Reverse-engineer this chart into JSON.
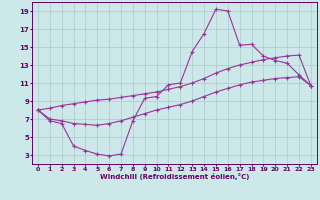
{
  "xlabel": "Windchill (Refroidissement éolien,°C)",
  "ylabel": "",
  "background_color": "#cce8e8",
  "grid_color": "#aacccc",
  "line_color": "#993399",
  "xlim": [
    -0.5,
    23.5
  ],
  "ylim": [
    2,
    20
  ],
  "xticks": [
    0,
    1,
    2,
    3,
    4,
    5,
    6,
    7,
    8,
    9,
    10,
    11,
    12,
    13,
    14,
    15,
    16,
    17,
    18,
    19,
    20,
    21,
    22,
    23
  ],
  "yticks": [
    3,
    5,
    7,
    9,
    11,
    13,
    15,
    17,
    19
  ],
  "hours": [
    0,
    1,
    2,
    3,
    4,
    5,
    6,
    7,
    8,
    9,
    10,
    11,
    12,
    13,
    14,
    15,
    16,
    17,
    18,
    19,
    20,
    21,
    22,
    23
  ],
  "line_main": [
    8.0,
    6.8,
    6.5,
    4.0,
    3.5,
    3.1,
    2.9,
    3.1,
    6.8,
    9.3,
    9.5,
    10.8,
    11.0,
    14.5,
    16.5,
    19.2,
    19.0,
    15.2,
    15.3,
    14.0,
    13.5,
    13.2,
    11.9,
    10.7
  ],
  "line_upper": [
    8.0,
    8.2,
    8.5,
    8.7,
    8.9,
    9.1,
    9.2,
    9.4,
    9.6,
    9.8,
    10.0,
    10.3,
    10.6,
    11.0,
    11.5,
    12.1,
    12.6,
    13.0,
    13.3,
    13.6,
    13.8,
    14.0,
    14.1,
    10.7
  ],
  "line_lower": [
    8.0,
    7.0,
    6.8,
    6.5,
    6.4,
    6.3,
    6.5,
    6.8,
    7.2,
    7.6,
    8.0,
    8.3,
    8.6,
    9.0,
    9.5,
    10.0,
    10.4,
    10.8,
    11.1,
    11.3,
    11.5,
    11.6,
    11.7,
    10.7
  ]
}
